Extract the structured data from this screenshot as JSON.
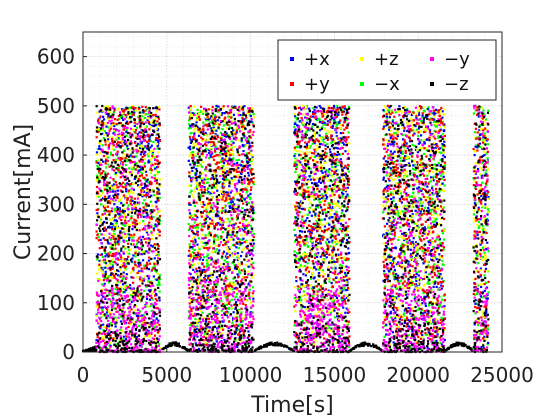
{
  "chart_data": {
    "type": "scatter",
    "xlabel": "Time[s]",
    "ylabel": "Current[mA]",
    "xlim": [
      0,
      25000
    ],
    "ylim": [
      0,
      650
    ],
    "x_ticks": [
      0,
      5000,
      10000,
      15000,
      20000,
      25000
    ],
    "y_ticks": [
      0,
      100,
      200,
      300,
      400,
      500,
      600
    ],
    "grid": "major and minor dotted",
    "legend_placement": "top-right",
    "activity_windows": [
      [
        800,
        4600
      ],
      [
        6300,
        10200
      ],
      [
        12600,
        15900
      ],
      [
        17900,
        21600
      ],
      [
        23300,
        24200
      ]
    ],
    "series": [
      {
        "name": "+x",
        "color": "#0000ff",
        "peak": 500
      },
      {
        "name": "+y",
        "color": "#ff0000",
        "peak": 500
      },
      {
        "name": "+z",
        "color": "#ffff00",
        "peak": 500
      },
      {
        "name": "−x",
        "color": "#00ff00",
        "peak": 500
      },
      {
        "name": "−y",
        "color": "#ff00ff",
        "peak": 500
      },
      {
        "name": "−z",
        "color": "#000000",
        "peak": 500
      }
    ]
  }
}
